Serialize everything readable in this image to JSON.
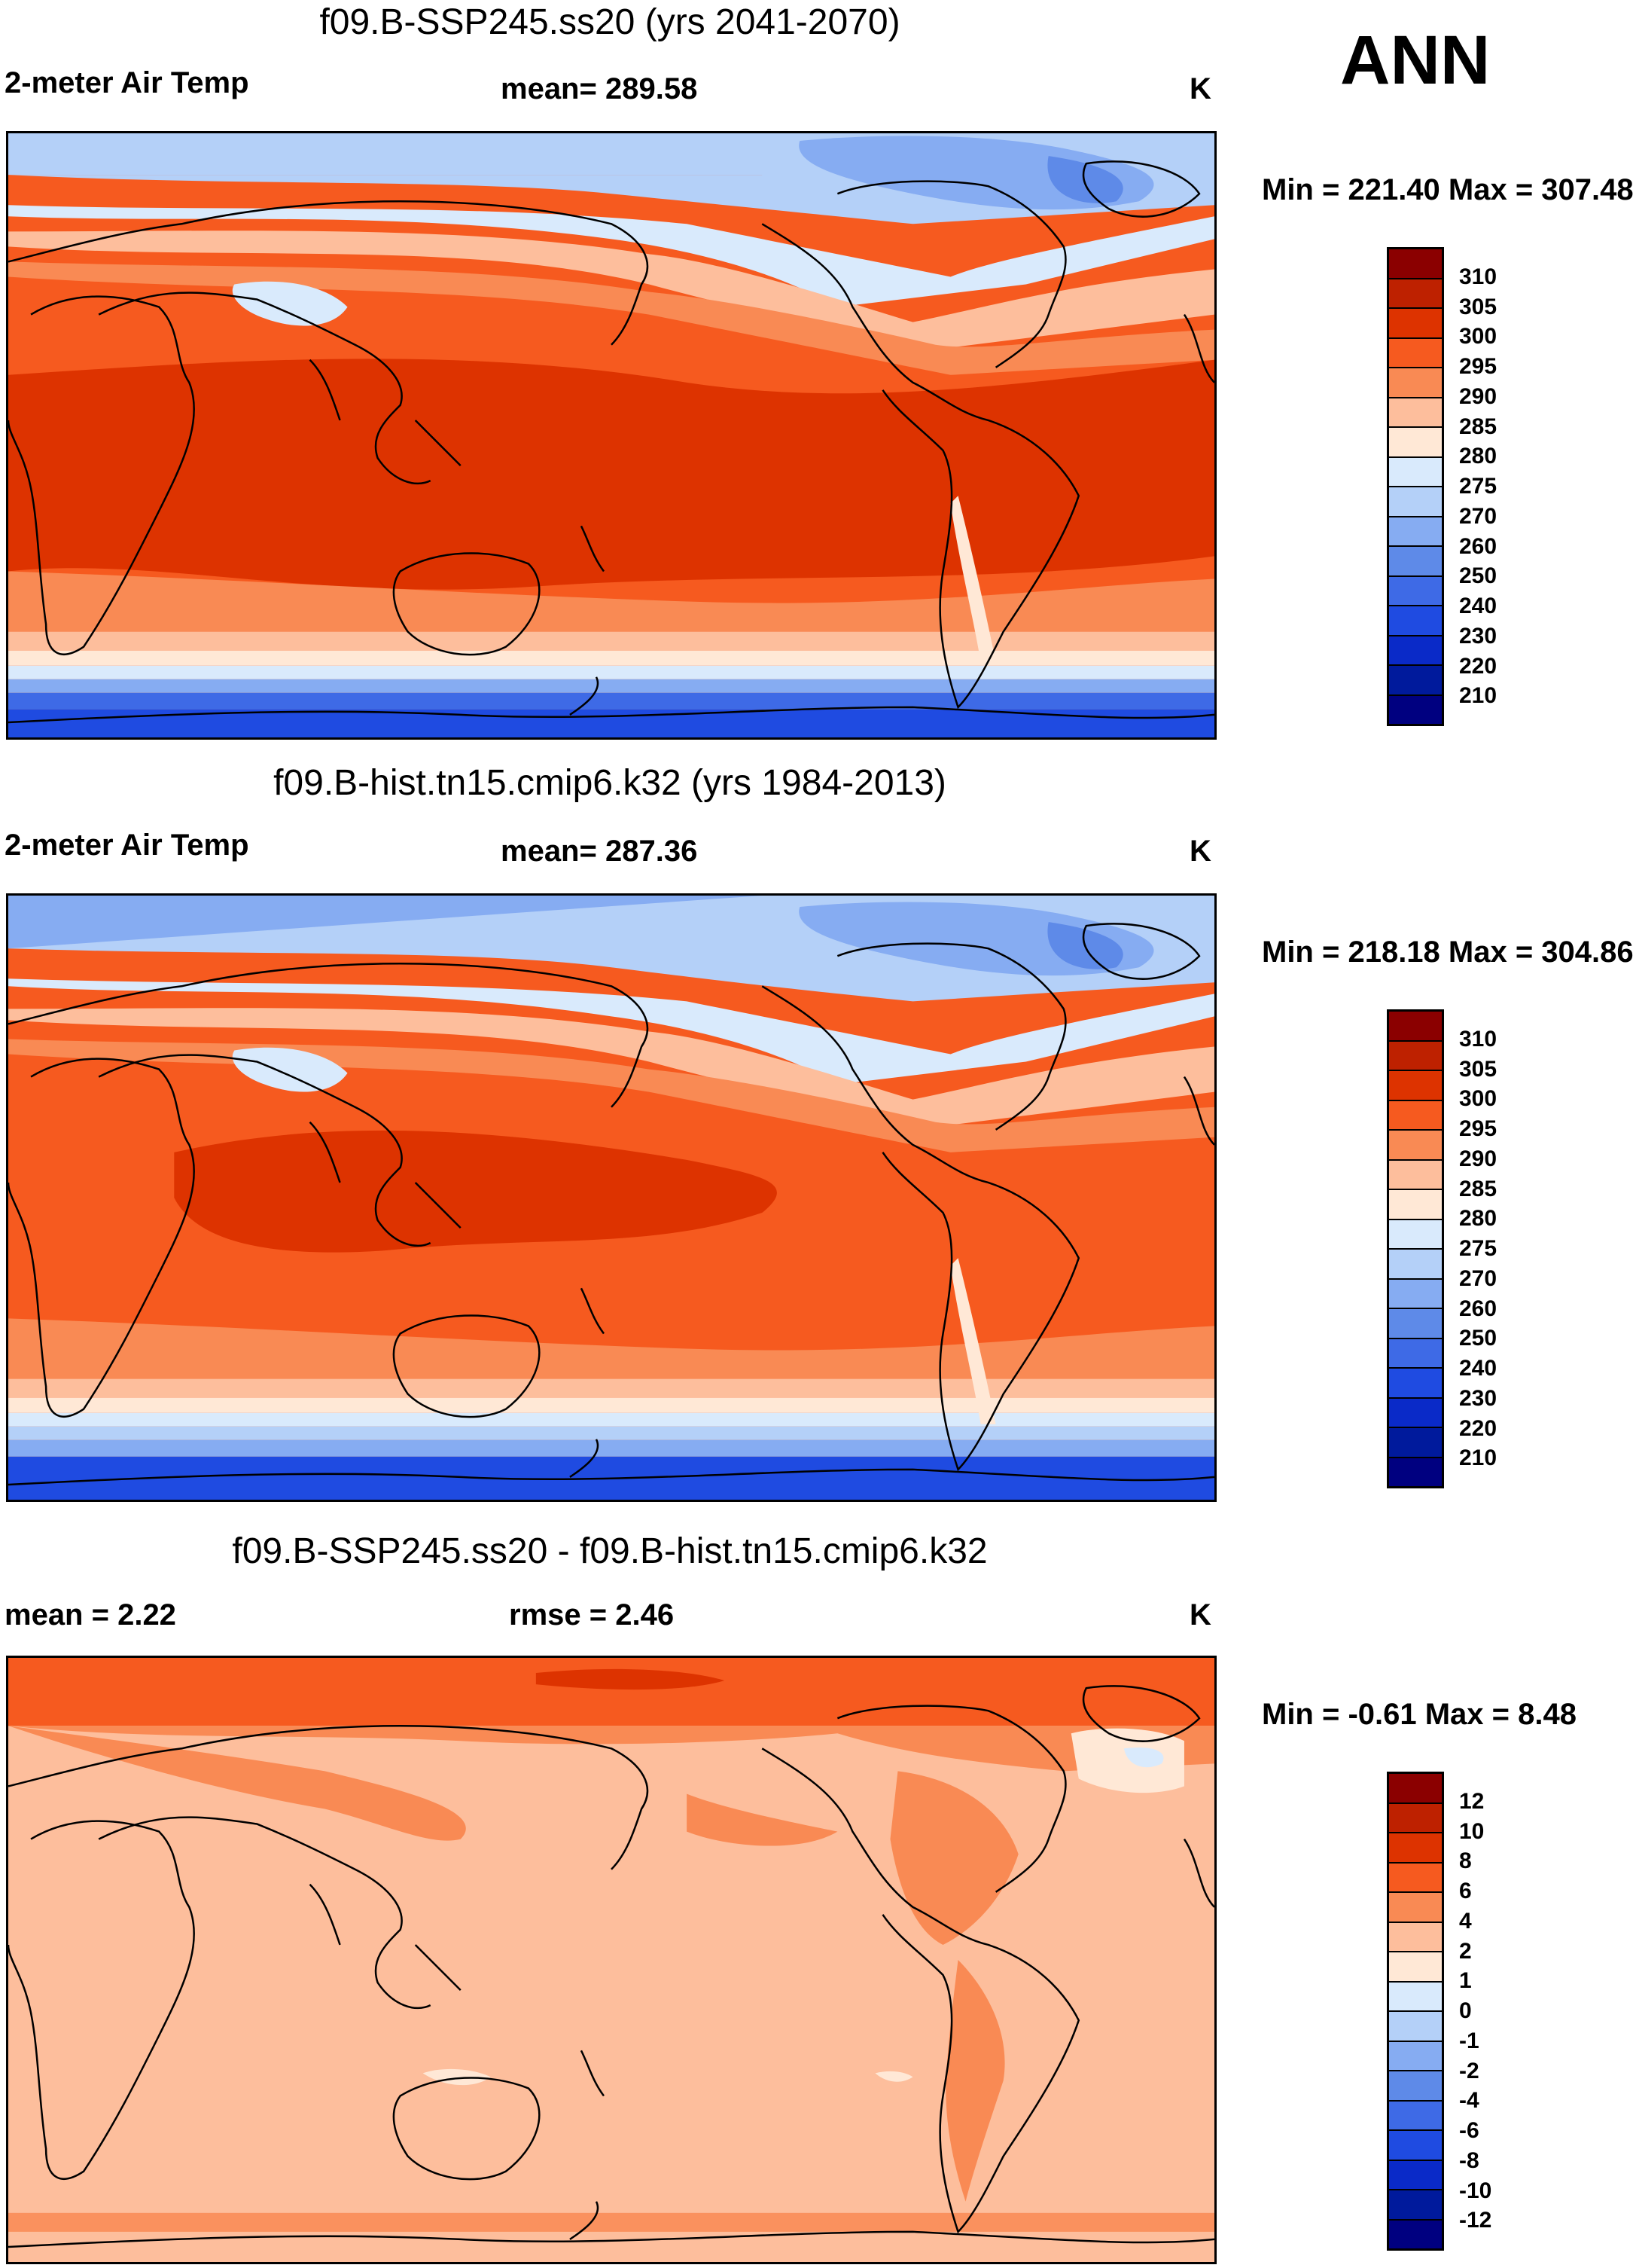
{
  "season": "ANN",
  "panels": [
    {
      "title": "f09.B-SSP245.ss20 (yrs 2041-2070)",
      "left_label": "2-meter Air Temp",
      "center_label": "mean= 289.58",
      "units": "K",
      "minmax": "Min = 221.40 Max = 307.48"
    },
    {
      "title": "f09.B-hist.tn15.cmip6.k32 (yrs 1984-2013)",
      "left_label": "2-meter Air Temp",
      "center_label": "mean= 287.36",
      "units": "K",
      "minmax": "Min = 218.18 Max = 304.86"
    },
    {
      "title": "f09.B-SSP245.ss20 - f09.B-hist.tn15.cmip6.k32",
      "left_label": "mean =   2.22",
      "center_label": "rmse =   2.46",
      "units": "K",
      "minmax": "Min =  -0.61 Max =   8.48"
    }
  ],
  "colorbars": {
    "temperature": {
      "colors": [
        "#8b0000",
        "#be2100",
        "#dd3300",
        "#f65a1f",
        "#f98a54",
        "#fdbe9c",
        "#ffe8d6",
        "#d9eafc",
        "#b4d0f8",
        "#86acf2",
        "#5e8ae8",
        "#3e6ae6",
        "#1f4be1",
        "#0a2ac8",
        "#001a9c",
        "#000080"
      ],
      "labels": [
        "310",
        "305",
        "300",
        "295",
        "290",
        "285",
        "280",
        "275",
        "270",
        "260",
        "250",
        "240",
        "230",
        "220",
        "210"
      ]
    },
    "difference": {
      "colors": [
        "#8b0000",
        "#be2100",
        "#dd3300",
        "#f65a1f",
        "#f98a54",
        "#fdbe9c",
        "#ffe8d6",
        "#d9eafc",
        "#b4d0f8",
        "#86acf2",
        "#5e8ae8",
        "#3e6ae6",
        "#1f4be1",
        "#0a2ac8",
        "#001a9c",
        "#000080"
      ],
      "labels": [
        "12",
        "10",
        "8",
        "6",
        "4",
        "2",
        "1",
        "0",
        "-1",
        "-2",
        "-4",
        "-6",
        "-8",
        "-10",
        "-12"
      ]
    }
  }
}
